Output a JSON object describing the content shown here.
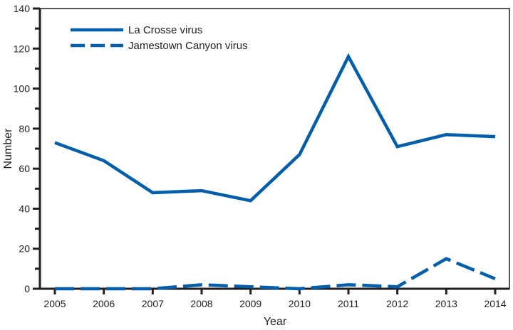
{
  "chart_data": {
    "type": "line",
    "title": "",
    "xlabel": "Year",
    "ylabel": "Number",
    "x": [
      "2005",
      "2006",
      "2007",
      "2008",
      "2009",
      "2010",
      "2011",
      "2012",
      "2013",
      "2014"
    ],
    "ylim": [
      0,
      140
    ],
    "yticks_major": [
      0,
      20,
      40,
      60,
      80,
      100,
      120,
      140
    ],
    "yticks_minor": [
      10,
      30,
      50,
      70,
      90,
      110,
      130
    ],
    "grid": false,
    "legend_position": "top-left",
    "series": [
      {
        "name": "La Crosse virus",
        "style": "solid",
        "color": "#005eaa",
        "values": [
          73,
          64,
          48,
          49,
          44,
          67,
          116,
          71,
          77,
          76
        ]
      },
      {
        "name": "Jamestown Canyon virus",
        "style": "dashed",
        "color": "#005eaa",
        "values": [
          0,
          0,
          0,
          2,
          1,
          0,
          2,
          1,
          15,
          5
        ]
      }
    ]
  }
}
